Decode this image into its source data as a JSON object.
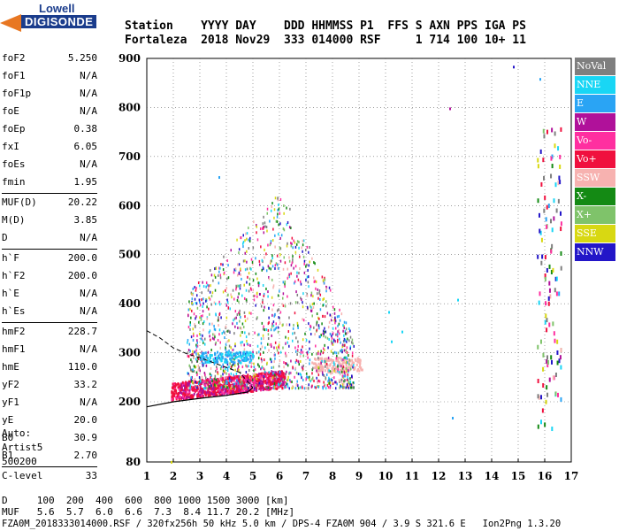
{
  "logo": {
    "line1": "Lowell",
    "line2": "DIGISONDE"
  },
  "header": {
    "row1": "Station    YYYY DAY    DDD HHMMSS P1  FFS S AXN PPS IGA PS",
    "row2": "Fortaleza  2018 Nov29  333 014000 RSF     1 714 100 10+ 11"
  },
  "params": [
    {
      "k": "foF2",
      "v": "5.250"
    },
    {
      "k": "foF1",
      "v": "N/A"
    },
    {
      "k": "foF1p",
      "v": "N/A"
    },
    {
      "k": "foE",
      "v": "N/A"
    },
    {
      "k": "foEp",
      "v": "0.38"
    },
    {
      "k": "fxI",
      "v": "6.05"
    },
    {
      "k": "foEs",
      "v": "N/A"
    },
    {
      "k": "fmin",
      "v": "1.95"
    },
    {
      "sep": true
    },
    {
      "k": "MUF(D)",
      "v": "20.22"
    },
    {
      "k": "M(D)",
      "v": "3.85"
    },
    {
      "k": "D",
      "v": "N/A"
    },
    {
      "sep": true
    },
    {
      "k": "h`F",
      "v": "200.0"
    },
    {
      "k": "h`F2",
      "v": "200.0"
    },
    {
      "k": "h`E",
      "v": "N/A"
    },
    {
      "k": "h`Es",
      "v": "N/A"
    },
    {
      "sep": true
    },
    {
      "k": "hmF2",
      "v": "228.7"
    },
    {
      "k": "hmF1",
      "v": "N/A"
    },
    {
      "k": "hmE",
      "v": "110.0"
    },
    {
      "k": "yF2",
      "v": "33.2"
    },
    {
      "k": "yF1",
      "v": "N/A"
    },
    {
      "k": "yE",
      "v": "20.0"
    },
    {
      "k": "B0",
      "v": "30.9"
    },
    {
      "k": "B1",
      "v": "2.70"
    },
    {
      "sep": true
    },
    {
      "k": "C-level",
      "v": "33"
    }
  ],
  "auto": [
    "Auto:",
    "Artist5",
    "500200"
  ],
  "legend": [
    {
      "label": "NoVal",
      "color": "#7f7f7f"
    },
    {
      "label": "NNE",
      "color": "#19d6f5"
    },
    {
      "label": "E",
      "color": "#2aa4f4"
    },
    {
      "label": "W",
      "color": "#b0119a"
    },
    {
      "label": "Vo-",
      "color": "#ff2fa0"
    },
    {
      "label": "Vo+",
      "color": "#f0103e"
    },
    {
      "label": "SSW",
      "color": "#f7b2b0"
    },
    {
      "label": "X-",
      "color": "#148a14"
    },
    {
      "label": "X+",
      "color": "#7fc36a"
    },
    {
      "label": "SSE",
      "color": "#d8d812"
    },
    {
      "label": "NNW",
      "color": "#2316c8"
    }
  ],
  "chart_data": {
    "type": "scatter",
    "xlim": [
      1,
      17
    ],
    "ylim": [
      80,
      900
    ],
    "x_ticks": [
      "1",
      "2",
      "3",
      "4",
      "5",
      "6",
      "7",
      "8",
      "9",
      "10",
      "11",
      "12",
      "13",
      "14",
      "15",
      "16",
      "17"
    ],
    "y_ticks": [
      {
        "v": 900,
        "t": "900"
      },
      {
        "v": 800,
        "t": "800"
      },
      {
        "v": 700,
        "t": "700"
      },
      {
        "v": 600,
        "t": "600"
      },
      {
        "v": 500,
        "t": "500"
      },
      {
        "v": 400,
        "t": "400"
      },
      {
        "v": 300,
        "t": "300"
      },
      {
        "v": 200,
        "t": "200"
      },
      {
        "v": 80,
        "t": "80"
      }
    ],
    "grid": "dotted",
    "profile_line": [
      [
        1.0,
        190
      ],
      [
        2.0,
        200
      ],
      [
        3.0,
        207
      ],
      [
        4.0,
        213
      ],
      [
        4.8,
        220
      ],
      [
        5.0,
        228.7
      ]
    ],
    "dashed_line": [
      [
        1.0,
        345
      ],
      [
        1.5,
        330
      ],
      [
        2.0,
        310
      ],
      [
        2.5,
        298
      ],
      [
        3.0,
        290
      ],
      [
        3.5,
        280
      ],
      [
        4.0,
        270
      ],
      [
        4.5,
        260
      ],
      [
        5.0,
        228.7
      ]
    ]
  },
  "footer": {
    "row_d": "D     100  200  400  600  800 1000 1500 3000 [km]",
    "row_muf": "MUF   5.6  5.7  6.0  6.6  7.3  8.4 11.7 20.2 [MHz]",
    "row_info": "FZA0M_2018333014000.RSF / 320fx256h 50 kHz 5.0 km / DPS-4 FZA0M 904 / 3.9 S 321.6 E   Ion2Png 1.3.20"
  }
}
